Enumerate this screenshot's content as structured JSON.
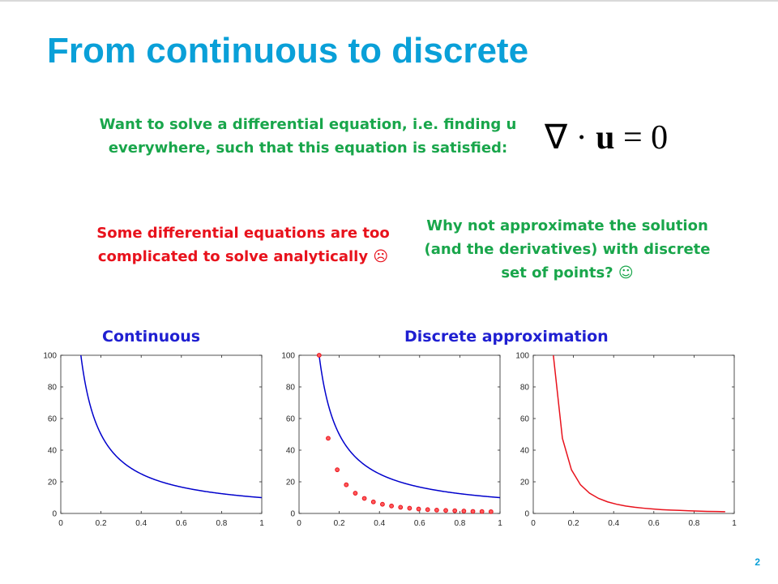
{
  "slide": {
    "title": "From continuous to discrete",
    "page_number": "2",
    "intro_line1": "Want to solve a differential equation, i.e. finding u",
    "intro_line2": "everywhere, such that this equation is satisfied:",
    "equation": {
      "nabla": "∇",
      "dot": " · ",
      "u": "u",
      "rest": " = 0"
    },
    "problem_line1": "Some differential equations are too",
    "problem_line2": "complicated to solve analytically ☹",
    "idea_line1": "Why not approximate the solution",
    "idea_line2": "(and the derivatives) with discrete",
    "idea_line3": "set of points? ☺",
    "label_continuous": "Continuous",
    "label_discrete": "Discrete approximation"
  },
  "colors": {
    "title": "#0aa0d8",
    "green_text": "#19a64b",
    "red_text": "#e8121c",
    "blue": "#0000cc",
    "red_line": "#e8121c"
  },
  "chart_data": [
    {
      "type": "line",
      "title": "",
      "xlabel": "",
      "ylabel": "",
      "xlim": [
        0,
        1
      ],
      "ylim": [
        0,
        100
      ],
      "xticks": [
        0,
        0.2,
        0.4,
        0.6,
        0.8,
        1
      ],
      "yticks": [
        0,
        20,
        40,
        60,
        80,
        100
      ],
      "xtick_labels": [
        "0",
        "0.2",
        "0.4",
        "0.6",
        "0.8",
        "1"
      ],
      "ytick_labels": [
        "0",
        "20",
        "40",
        "60",
        "80",
        "100"
      ],
      "series": [
        {
          "color": "#0000cc",
          "style": "line",
          "x": [
            0.1,
            0.12,
            0.14,
            0.16,
            0.18,
            0.2,
            0.25,
            0.3,
            0.35,
            0.4,
            0.5,
            0.6,
            0.7,
            0.8,
            0.9,
            1.0
          ],
          "y": [
            100,
            83.3,
            71.4,
            62.5,
            55.6,
            50,
            40,
            33.3,
            28.6,
            25,
            20,
            16.7,
            14.3,
            12.5,
            11.1,
            10
          ]
        }
      ]
    },
    {
      "type": "line",
      "title": "",
      "xlabel": "",
      "ylabel": "",
      "xlim": [
        0,
        1
      ],
      "ylim": [
        0,
        100
      ],
      "xticks": [
        0,
        0.2,
        0.4,
        0.6,
        0.8,
        1
      ],
      "yticks": [
        0,
        20,
        40,
        60,
        80,
        100
      ],
      "xtick_labels": [
        "0",
        "0.2",
        "0.4",
        "0.6",
        "0.8",
        "1"
      ],
      "ytick_labels": [
        "0",
        "20",
        "40",
        "60",
        "80",
        "100"
      ],
      "series": [
        {
          "color": "#0000cc",
          "style": "line",
          "x": [
            0.1,
            0.12,
            0.14,
            0.16,
            0.18,
            0.2,
            0.25,
            0.3,
            0.35,
            0.4,
            0.5,
            0.6,
            0.7,
            0.8,
            0.9,
            1.0
          ],
          "y": [
            100,
            83.3,
            71.4,
            62.5,
            55.6,
            50,
            40,
            33.3,
            28.6,
            25,
            20,
            16.7,
            14.3,
            12.5,
            11.1,
            10
          ]
        },
        {
          "color": "#e8121c",
          "style": "markers",
          "x": [
            0.1,
            0.145,
            0.19,
            0.235,
            0.28,
            0.325,
            0.37,
            0.415,
            0.46,
            0.505,
            0.55,
            0.595,
            0.64,
            0.685,
            0.73,
            0.775,
            0.82,
            0.865,
            0.91,
            0.955
          ],
          "y": [
            100,
            47.5,
            27.6,
            18.1,
            12.8,
            9.5,
            7.3,
            5.8,
            4.7,
            3.9,
            3.3,
            2.8,
            2.4,
            2.1,
            1.9,
            1.7,
            1.5,
            1.3,
            1.2,
            1.1
          ]
        }
      ]
    },
    {
      "type": "line",
      "title": "",
      "xlabel": "",
      "ylabel": "",
      "xlim": [
        0,
        1
      ],
      "ylim": [
        0,
        100
      ],
      "xticks": [
        0,
        0.2,
        0.4,
        0.6,
        0.8,
        1
      ],
      "yticks": [
        0,
        20,
        40,
        60,
        80,
        100
      ],
      "xtick_labels": [
        "0",
        "0.2",
        "0.4",
        "0.6",
        "0.8",
        "1"
      ],
      "ytick_labels": [
        "0",
        "20",
        "40",
        "60",
        "80",
        "100"
      ],
      "series": [
        {
          "color": "#e8121c",
          "style": "line",
          "x": [
            0.1,
            0.145,
            0.19,
            0.235,
            0.28,
            0.325,
            0.37,
            0.415,
            0.46,
            0.505,
            0.55,
            0.595,
            0.64,
            0.685,
            0.73,
            0.775,
            0.82,
            0.865,
            0.91,
            0.955
          ],
          "y": [
            100,
            47.5,
            27.6,
            18.1,
            12.8,
            9.5,
            7.3,
            5.8,
            4.7,
            3.9,
            3.3,
            2.8,
            2.4,
            2.1,
            1.9,
            1.7,
            1.5,
            1.3,
            1.2,
            1.1
          ]
        }
      ]
    }
  ]
}
